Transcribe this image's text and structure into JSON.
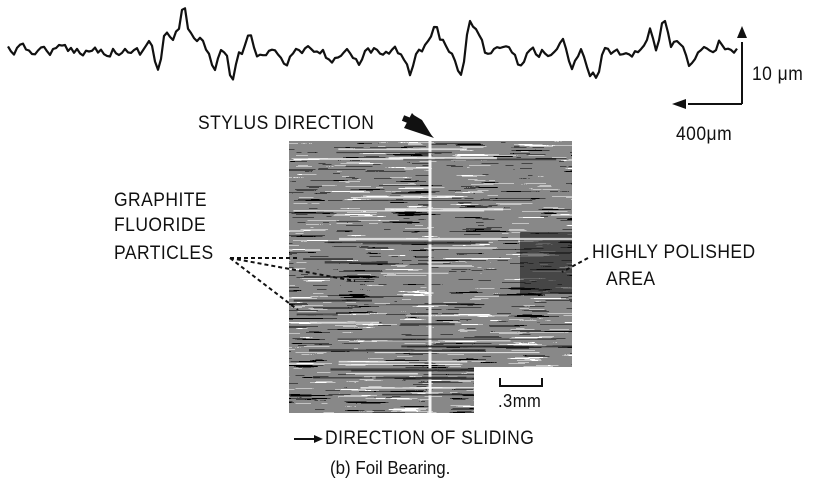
{
  "profile": {
    "vertical_scale_label": "10 μm",
    "horizontal_scale_label": "400μm"
  },
  "labels": {
    "stylus_direction": "STYLUS DIRECTION",
    "graphite_line1": "GRAPHITE",
    "graphite_line2": "FLUORIDE",
    "graphite_line3": "PARTICLES",
    "polished_line1": "HIGHLY POLISHED",
    "polished_line2": "AREA",
    "micrograph_scale": ".3mm",
    "sliding_direction": "DIRECTION OF SLIDING",
    "caption": "(b) Foil Bearing."
  },
  "colors": {
    "ink": "#111111",
    "background": "#ffffff"
  }
}
